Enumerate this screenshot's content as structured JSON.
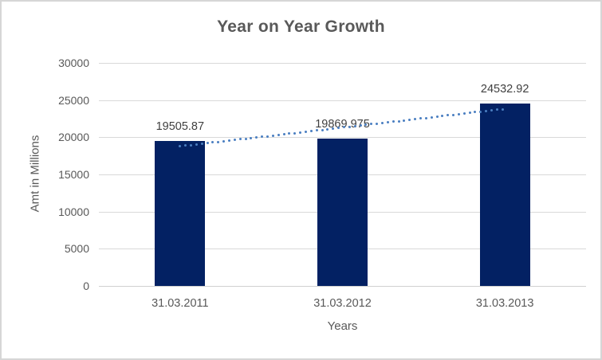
{
  "frame": {
    "background": "#ffffff",
    "border_color": "#d6d6d6"
  },
  "chart_data": {
    "type": "bar",
    "title": "Year on Year Growth",
    "xlabel": "Years",
    "ylabel": "Amt in Millions",
    "categories": [
      "31.03.2011",
      "31.03.2012",
      "31.03.2013"
    ],
    "values": [
      19505.87,
      19869.975,
      24532.92
    ],
    "value_labels": [
      "19505.87",
      "19869.975",
      "24532.92"
    ],
    "ylim": [
      0,
      30000
    ],
    "yticks": [
      0,
      5000,
      10000,
      15000,
      20000,
      25000,
      30000
    ],
    "grid": true,
    "legend": "none",
    "bar_color": "#032163",
    "trendline": {
      "type": "linear",
      "style": "dotted",
      "color": "#4a7fc1",
      "start_value": 18789,
      "end_value": 23817
    },
    "colors": {
      "title_text": "#595959",
      "axis_text": "#595959",
      "value_label_text": "#404040",
      "gridline": "#d9d9d9"
    }
  }
}
